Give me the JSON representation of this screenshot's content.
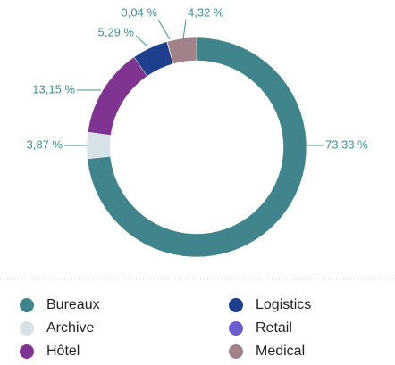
{
  "chart_data": {
    "type": "donut",
    "categories": [
      "Bureaux",
      "Archive",
      "Hôtel",
      "Logistics",
      "Retail",
      "Medical"
    ],
    "values": [
      73.33,
      3.87,
      13.15,
      5.29,
      0.04,
      4.32
    ],
    "value_labels": [
      "73,33 %",
      "3,87 %",
      "13,15 %",
      "5,29 %",
      "0,04 %",
      "4,32 %"
    ],
    "colors": [
      "#40848c",
      "#d6e2e8",
      "#7e3490",
      "#1e3f8c",
      "#6b5fcf",
      "#a08288"
    ],
    "legend": "bottom"
  }
}
